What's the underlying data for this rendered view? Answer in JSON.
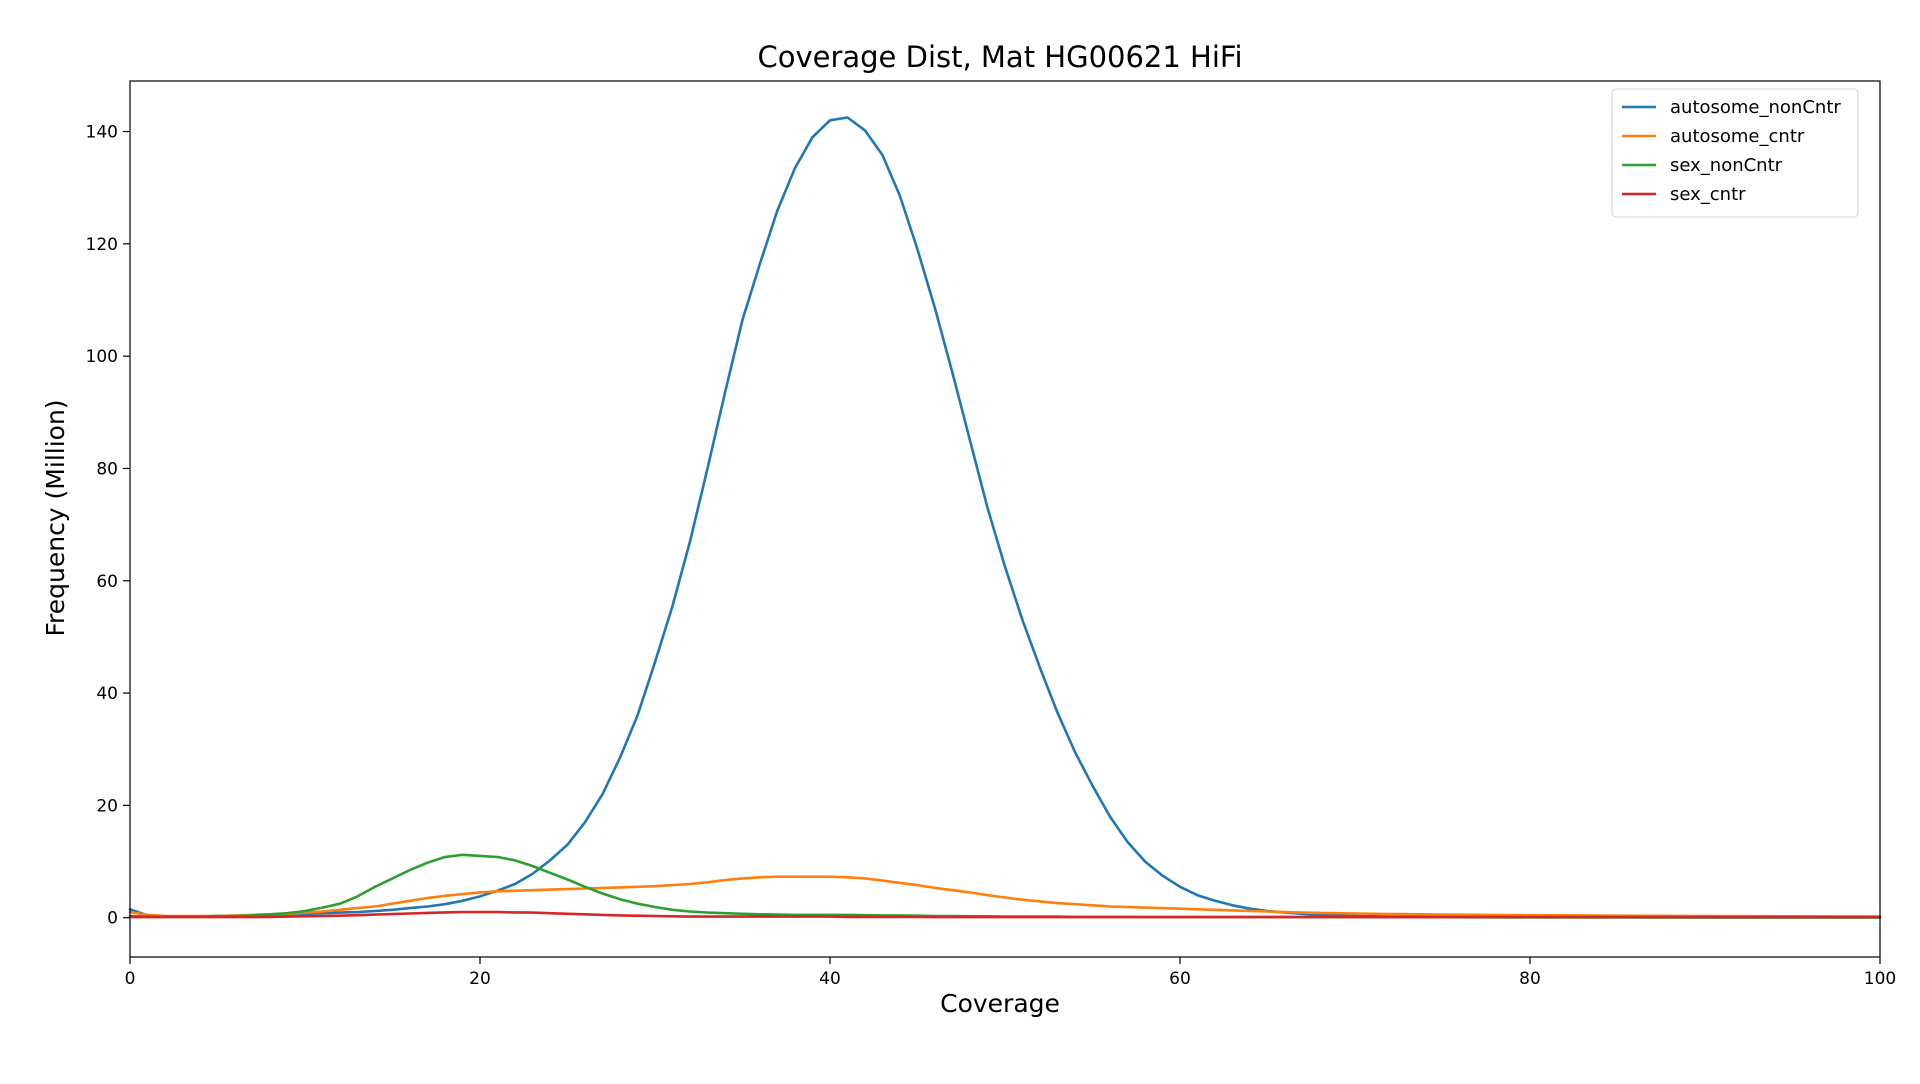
{
  "chart_data": {
    "type": "line",
    "title": "Coverage Dist, Mat HG00621 HiFi",
    "xlabel": "Coverage",
    "ylabel": "Frequency (Million)",
    "xlim": [
      0,
      100
    ],
    "ylim": [
      -7,
      149
    ],
    "xticks": [
      0,
      20,
      40,
      60,
      80,
      100
    ],
    "yticks": [
      0,
      20,
      40,
      60,
      80,
      100,
      120,
      140
    ],
    "grid": false,
    "legend_position": "top-right",
    "x": [
      0,
      1,
      2,
      3,
      4,
      5,
      6,
      7,
      8,
      9,
      10,
      11,
      12,
      13,
      14,
      15,
      16,
      17,
      18,
      19,
      20,
      21,
      22,
      23,
      24,
      25,
      26,
      27,
      28,
      29,
      30,
      31,
      32,
      33,
      34,
      35,
      36,
      37,
      38,
      39,
      40,
      41,
      42,
      43,
      44,
      45,
      46,
      47,
      48,
      49,
      50,
      51,
      52,
      53,
      54,
      55,
      56,
      57,
      58,
      59,
      60,
      61,
      62,
      63,
      64,
      65,
      66,
      67,
      68,
      69,
      70,
      72,
      75,
      80,
      85,
      90,
      95,
      100
    ],
    "series": [
      {
        "name": "autosome_nonCntr",
        "color": "#1f77b4",
        "values": [
          1.5,
          0.4,
          0.2,
          0.2,
          0.2,
          0.3,
          0.3,
          0.4,
          0.5,
          0.6,
          0.7,
          0.8,
          0.9,
          1.0,
          1.2,
          1.4,
          1.7,
          2.0,
          2.4,
          3.0,
          3.8,
          4.8,
          6.0,
          7.8,
          10.2,
          13.0,
          17.0,
          22.0,
          28.5,
          36.0,
          45.5,
          55.5,
          67.0,
          80.0,
          93.5,
          106.5,
          116.5,
          126.0,
          133.5,
          139.0,
          142.0,
          142.5,
          140.2,
          135.8,
          128.5,
          119.0,
          108.5,
          97.0,
          85.0,
          73.0,
          62.5,
          53.0,
          44.5,
          36.5,
          29.5,
          23.5,
          18.0,
          13.5,
          10.0,
          7.5,
          5.5,
          4.0,
          3.0,
          2.2,
          1.6,
          1.2,
          0.9,
          0.7,
          0.5,
          0.4,
          0.3,
          0.2,
          0.15,
          0.1,
          0.08,
          0.06,
          0.05,
          0.05
        ]
      },
      {
        "name": "autosome_cntr",
        "color": "#ff7f0e",
        "values": [
          1.0,
          0.5,
          0.3,
          0.3,
          0.3,
          0.3,
          0.4,
          0.5,
          0.6,
          0.7,
          0.9,
          1.1,
          1.4,
          1.7,
          2.0,
          2.5,
          3.0,
          3.5,
          3.9,
          4.2,
          4.5,
          4.7,
          4.8,
          4.9,
          5.0,
          5.1,
          5.2,
          5.3,
          5.4,
          5.5,
          5.6,
          5.8,
          6.0,
          6.3,
          6.7,
          7.0,
          7.2,
          7.3,
          7.3,
          7.3,
          7.3,
          7.2,
          7.0,
          6.6,
          6.2,
          5.8,
          5.3,
          4.9,
          4.5,
          4.0,
          3.6,
          3.2,
          2.9,
          2.6,
          2.4,
          2.2,
          2.0,
          1.9,
          1.8,
          1.7,
          1.6,
          1.5,
          1.4,
          1.3,
          1.2,
          1.1,
          1.0,
          0.9,
          0.85,
          0.8,
          0.75,
          0.65,
          0.55,
          0.45,
          0.35,
          0.3,
          0.25,
          0.2
        ]
      },
      {
        "name": "sex_nonCntr",
        "color": "#2ca02c",
        "values": [
          0.3,
          0.2,
          0.2,
          0.2,
          0.2,
          0.3,
          0.3,
          0.4,
          0.6,
          0.8,
          1.2,
          1.8,
          2.5,
          3.8,
          5.5,
          7.0,
          8.5,
          9.8,
          10.8,
          11.2,
          11.0,
          10.8,
          10.2,
          9.2,
          8.0,
          6.8,
          5.5,
          4.3,
          3.3,
          2.5,
          1.9,
          1.4,
          1.1,
          0.9,
          0.8,
          0.7,
          0.6,
          0.55,
          0.5,
          0.5,
          0.5,
          0.5,
          0.45,
          0.4,
          0.4,
          0.35,
          0.3,
          0.3,
          0.25,
          0.25,
          0.2,
          0.2,
          0.2,
          0.2,
          0.15,
          0.15,
          0.15,
          0.15,
          0.1,
          0.1,
          0.1,
          0.1,
          0.1,
          0.1,
          0.1,
          0.1,
          0.1,
          0.1,
          0.1,
          0.1,
          0.1,
          0.1,
          0.08,
          0.06,
          0.05,
          0.05,
          0.05,
          0.05
        ]
      },
      {
        "name": "sex_cntr",
        "color": "#d62728",
        "values": [
          0.1,
          0.1,
          0.1,
          0.1,
          0.1,
          0.1,
          0.1,
          0.1,
          0.15,
          0.2,
          0.25,
          0.3,
          0.35,
          0.45,
          0.55,
          0.65,
          0.75,
          0.85,
          0.95,
          1.0,
          1.0,
          1.0,
          0.95,
          0.9,
          0.8,
          0.7,
          0.6,
          0.5,
          0.4,
          0.35,
          0.3,
          0.25,
          0.2,
          0.2,
          0.2,
          0.2,
          0.2,
          0.2,
          0.2,
          0.2,
          0.2,
          0.15,
          0.15,
          0.15,
          0.15,
          0.15,
          0.1,
          0.1,
          0.1,
          0.1,
          0.1,
          0.1,
          0.1,
          0.1,
          0.1,
          0.1,
          0.1,
          0.1,
          0.1,
          0.1,
          0.1,
          0.1,
          0.1,
          0.1,
          0.1,
          0.1,
          0.1,
          0.1,
          0.1,
          0.1,
          0.1,
          0.1,
          0.1,
          0.1,
          0.1,
          0.1,
          0.1,
          0.1
        ]
      }
    ]
  }
}
